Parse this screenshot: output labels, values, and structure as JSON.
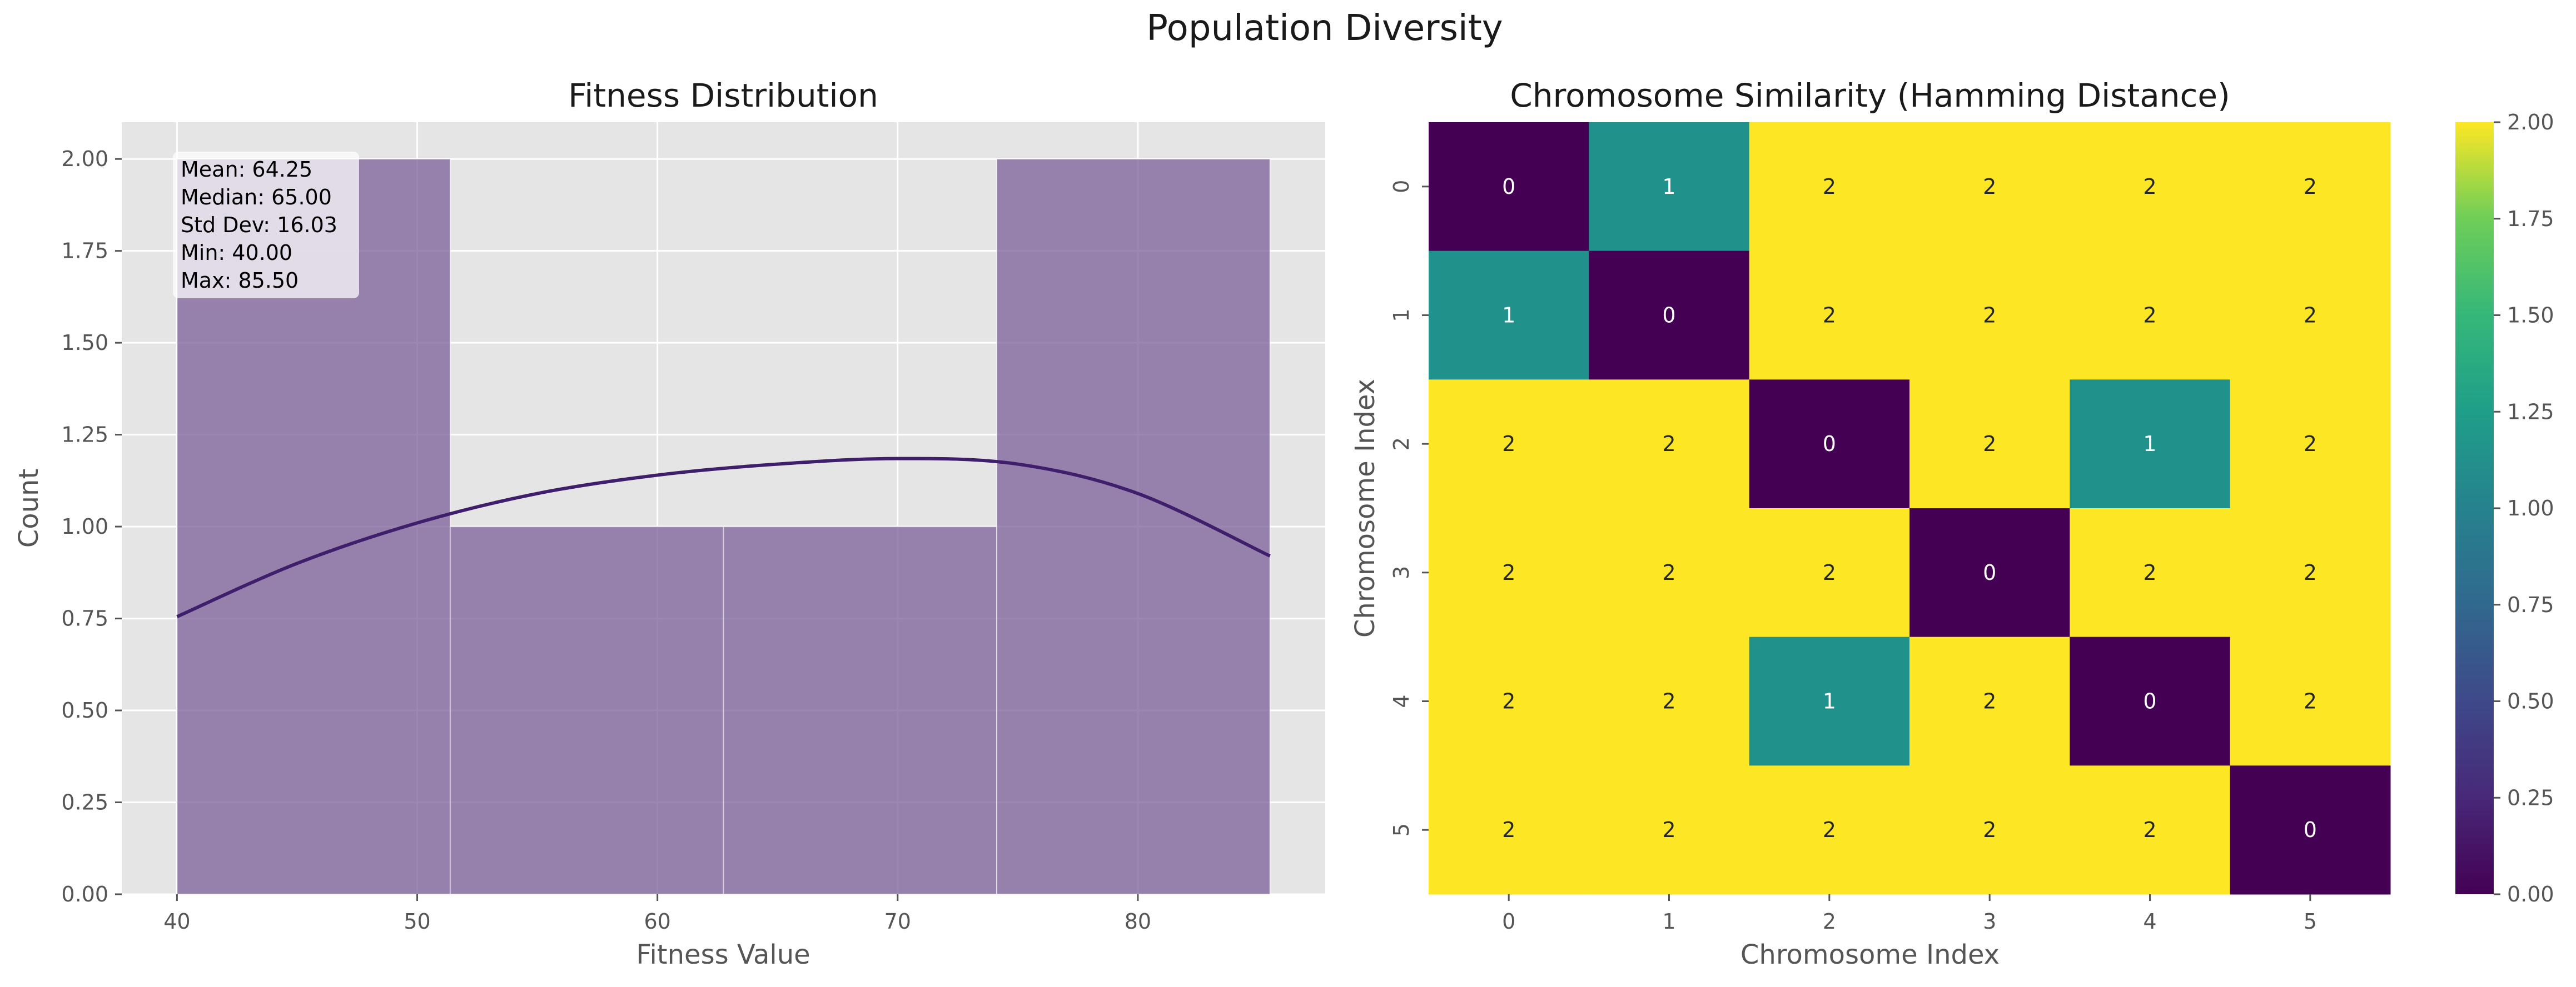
{
  "figure": {
    "title": "Population Diversity"
  },
  "chart_data": [
    {
      "type": "bar",
      "title": "Fitness Distribution",
      "xlabel": "Fitness Value",
      "ylabel": "Count",
      "xlim": [
        37.7,
        87.8
      ],
      "ylim": [
        0,
        2.1
      ],
      "xticks": [
        40,
        50,
        60,
        70,
        80
      ],
      "yticks": [
        0.0,
        0.25,
        0.5,
        0.75,
        1.0,
        1.25,
        1.5,
        1.75,
        2.0
      ],
      "bin_edges": [
        40.0,
        51.375,
        62.75,
        74.125,
        85.5
      ],
      "counts": [
        2,
        1,
        1,
        2
      ],
      "kde": {
        "x": [
          40,
          45,
          50,
          55,
          60,
          65,
          70,
          75,
          80,
          85.5
        ],
        "y": [
          0.755,
          0.9,
          1.01,
          1.09,
          1.14,
          1.17,
          1.185,
          1.17,
          1.09,
          0.92
        ]
      },
      "grid": true,
      "stats_box": [
        "Mean: 64.25",
        "Median: 65.00",
        "Std Dev: 16.03",
        "Min: 40.00",
        "Max: 85.50"
      ],
      "colors": {
        "bar": "#7b5f9a",
        "kde": "#3f1f6b",
        "background": "#e5e5e5"
      }
    },
    {
      "type": "heatmap",
      "title": "Chromosome Similarity (Hamming Distance)",
      "xlabel": "Chromosome Index",
      "ylabel": "Chromosome Index",
      "x_labels": [
        "0",
        "1",
        "2",
        "3",
        "4",
        "5"
      ],
      "y_labels": [
        "0",
        "1",
        "2",
        "3",
        "4",
        "5"
      ],
      "values": [
        [
          0,
          1,
          2,
          2,
          2,
          2
        ],
        [
          1,
          0,
          2,
          2,
          2,
          2
        ],
        [
          2,
          2,
          0,
          2,
          1,
          2
        ],
        [
          2,
          2,
          2,
          0,
          2,
          2
        ],
        [
          2,
          2,
          1,
          2,
          0,
          2
        ],
        [
          2,
          2,
          2,
          2,
          2,
          0
        ]
      ],
      "vmin": 0,
      "vmax": 2,
      "colormap": "viridis",
      "colorbar_ticks": [
        "0.00",
        "0.25",
        "0.50",
        "0.75",
        "1.00",
        "1.25",
        "1.50",
        "1.75",
        "2.00"
      ],
      "colors": {
        "low": "#440154",
        "mid": "#21918c",
        "high": "#fde725"
      }
    }
  ]
}
